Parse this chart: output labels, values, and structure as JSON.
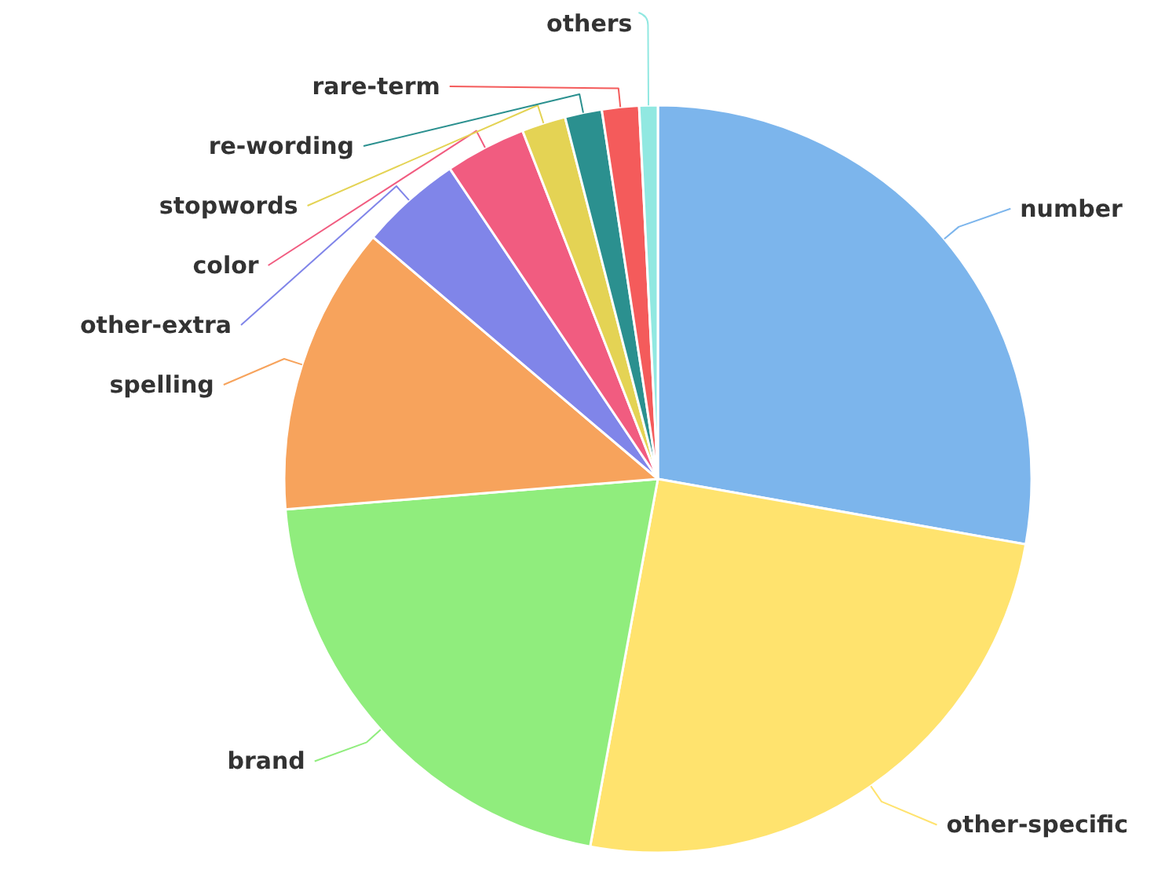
{
  "chart_data": {
    "type": "pie",
    "categories": [
      "number",
      "other-specific",
      "brand",
      "spelling",
      "other-extra",
      "color",
      "stopwords",
      "re-wording",
      "rare-term",
      "others"
    ],
    "values": [
      27.8,
      25.1,
      20.8,
      12.5,
      4.4,
      3.5,
      1.9,
      1.6,
      1.6,
      0.8
    ],
    "colors": [
      "#7cb5ec",
      "#ffe36e",
      "#90ed7d",
      "#f7a35c",
      "#8085e9",
      "#f15c80",
      "#e4d354",
      "#2b908f",
      "#f45b5b",
      "#91e8e1"
    ],
    "legend": false
  }
}
